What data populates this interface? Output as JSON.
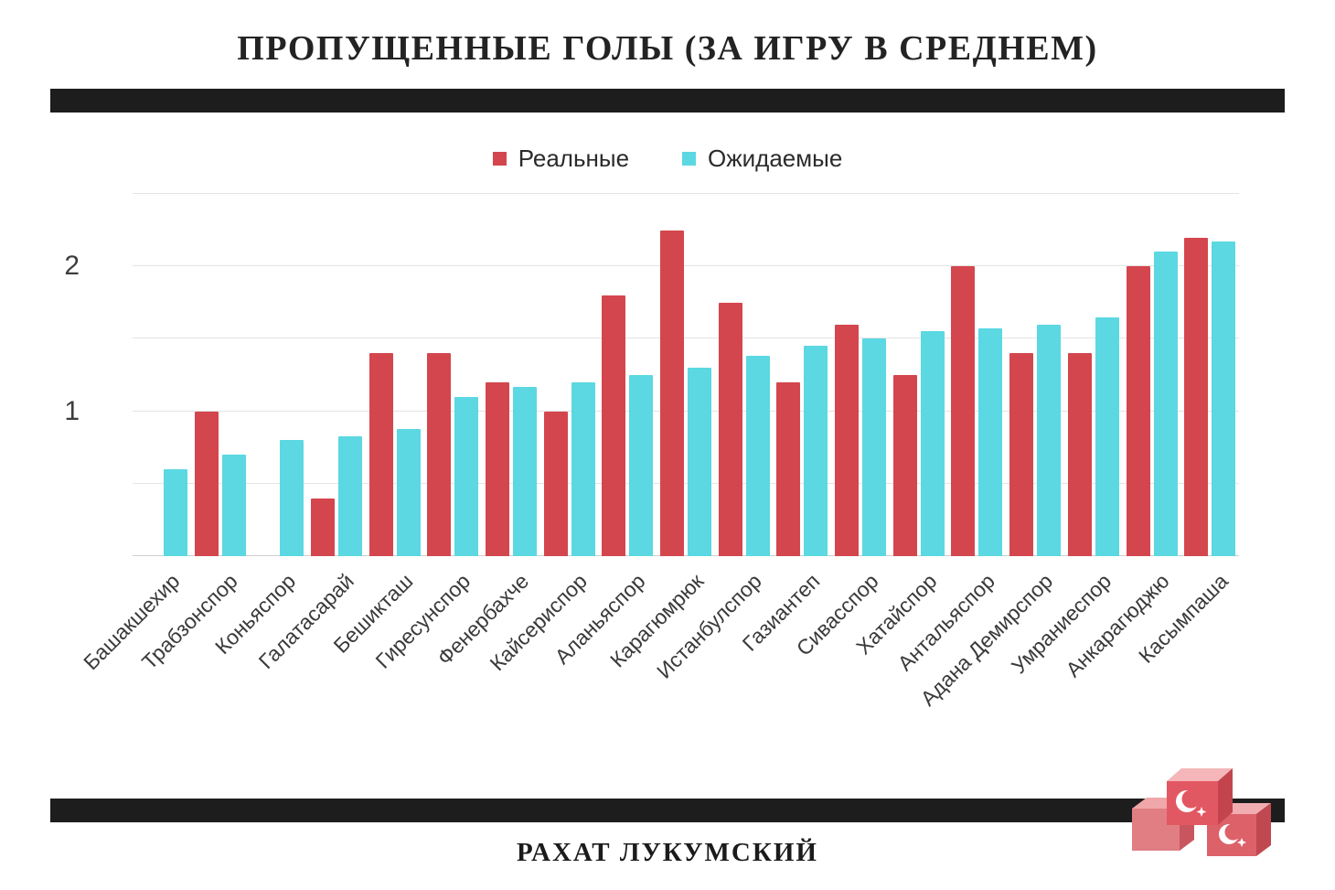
{
  "title": "ПРОПУЩЕННЫЕ ГОЛЫ (ЗА ИГРУ В СРЕДНЕМ)",
  "footer": "РАХАТ ЛУКУМСКИЙ",
  "decor": {
    "divider_color": "#1d1d1d",
    "graphic": "turkish-delight-cubes"
  },
  "chart_data": {
    "type": "bar",
    "title": "ПРОПУЩЕННЫЕ ГОЛЫ (ЗА ИГРУ В СРЕДНЕМ)",
    "xlabel": "",
    "ylabel": "",
    "ylim": [
      0,
      2.5
    ],
    "yticks": [
      1,
      2
    ],
    "gridline_step": 0.5,
    "grid": "horizontal",
    "legend_position": "top",
    "categories": [
      "Башакшехир",
      "Трабзонспор",
      "Коньяспор",
      "Галатасарай",
      "Бешикташ",
      "Гиресунспор",
      "Фенербахче",
      "Кайсериспор",
      "Аланьяспор",
      "Карагюмрюк",
      "Истанбулспор",
      "Газиантеп",
      "Сивасспор",
      "Хатайспор",
      "Антальяспор",
      "Адана Демирспор",
      "Умраниеспор",
      "Анкарагюджю",
      "Касымпаша"
    ],
    "series": [
      {
        "key": "real",
        "name": "Реальные",
        "color": "#d4464d",
        "values": [
          0,
          1.0,
          0,
          0.4,
          1.4,
          1.4,
          1.2,
          1.0,
          1.8,
          2.25,
          1.75,
          1.2,
          1.6,
          1.25,
          2.0,
          1.4,
          1.4,
          2.0,
          2.2
        ]
      },
      {
        "key": "expected",
        "name": "Ожидаемые",
        "color": "#5bd8e2",
        "values": [
          0.6,
          0.7,
          0.8,
          0.83,
          0.88,
          1.1,
          1.17,
          1.2,
          1.25,
          1.3,
          1.38,
          1.45,
          1.5,
          1.55,
          1.57,
          1.6,
          1.65,
          2.1,
          2.17
        ]
      }
    ]
  }
}
